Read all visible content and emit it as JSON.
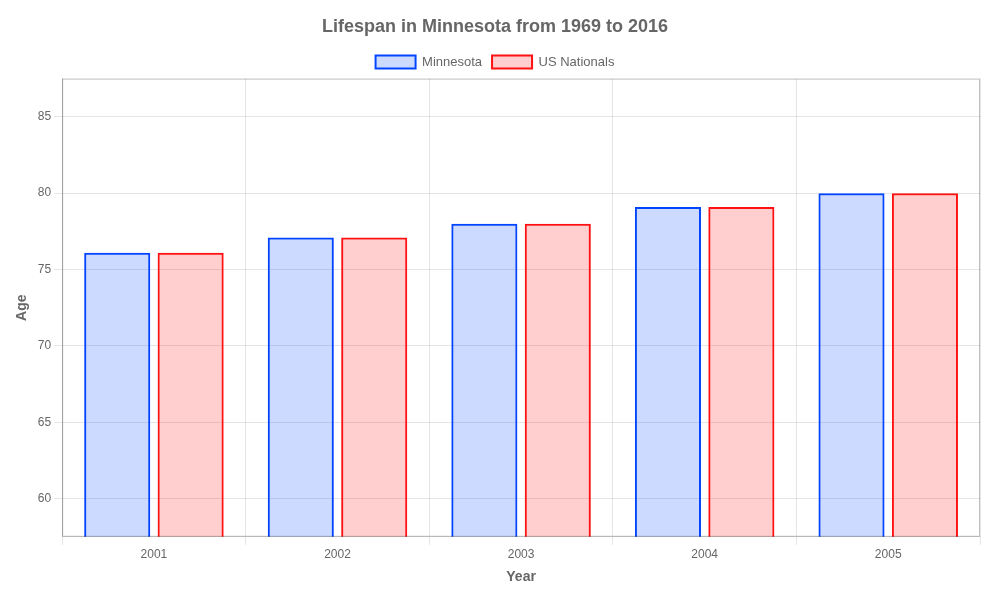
{
  "chart_data": {
    "type": "bar",
    "title": "Lifespan in Minnesota from 1969 to 2016",
    "xlabel": "Year",
    "ylabel": "Age",
    "categories": [
      "2001",
      "2002",
      "2003",
      "2004",
      "2005"
    ],
    "series": [
      {
        "name": "Minnesota",
        "color": "#0044ff",
        "values": [
          76.1,
          77.1,
          78.0,
          79.1,
          80.0
        ]
      },
      {
        "name": "US Nationals",
        "color": "#ff1111",
        "values": [
          76.1,
          77.1,
          78.0,
          79.1,
          80.0
        ]
      }
    ],
    "ylim": [
      57.5,
      87.5
    ],
    "yticks": [
      60,
      65,
      70,
      75,
      80,
      85
    ],
    "grid": true,
    "legend": "top"
  }
}
